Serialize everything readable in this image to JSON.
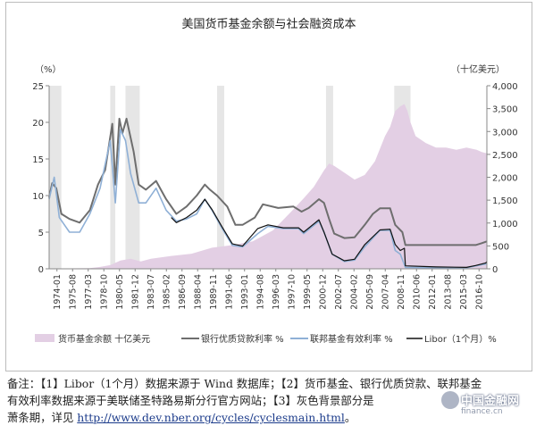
{
  "chart_data": {
    "type": "area+line",
    "title": "美国货币基金余额与社会融资成本",
    "left_axis": {
      "unit": "（%）",
      "min": 0,
      "max": 25,
      "ticks": [
        0,
        5,
        10,
        15,
        20,
        25
      ]
    },
    "right_axis": {
      "unit": "（十亿美元）",
      "min": 0,
      "max": 4000,
      "ticks": [
        0,
        500,
        1000,
        1500,
        2000,
        2500,
        3000,
        3500,
        4000
      ],
      "tick_labels": [
        "0",
        "500",
        "1,000",
        "1,500",
        "2,000",
        "2,500",
        "3,000",
        "3,500",
        "4,000"
      ]
    },
    "x_range": [
      1974.0,
      2017.0
    ],
    "x_tick_labels": [
      "1974-01",
      "1975-08",
      "1977-03",
      "1978-10",
      "1980-05",
      "1981-12",
      "1983-07",
      "1985-02",
      "1986-09",
      "1988-04",
      "1989-11",
      "1991-06",
      "1993-01",
      "1994-08",
      "1996-03",
      "1997-10",
      "1999-05",
      "2000-12",
      "2002-07",
      "2004-02",
      "2005-09",
      "2007-04",
      "2008-11",
      "2010-06",
      "2012-01",
      "2013-08",
      "2015-03",
      "2016-10"
    ],
    "recessions": [
      [
        1974.0,
        1975.2
      ],
      [
        1980.0,
        1980.5
      ],
      [
        1981.5,
        1982.9
      ],
      [
        1990.5,
        1991.2
      ],
      [
        2001.2,
        2001.9
      ],
      [
        2007.9,
        2009.5
      ]
    ],
    "series": [
      {
        "name": "货币基金余额 十亿美元",
        "axis": "right",
        "color": "#e3cfe4",
        "x": [
          1974.0,
          1976.0,
          1978.0,
          1979.0,
          1980.0,
          1981.0,
          1982.0,
          1983.0,
          1984.0,
          1986.0,
          1988.0,
          1990.0,
          1992.0,
          1994.0,
          1996.0,
          1998.0,
          1999.0,
          2000.0,
          2001.0,
          2001.5,
          2002.0,
          2003.0,
          2004.0,
          2005.0,
          2006.0,
          2007.0,
          2007.5,
          2008.0,
          2008.5,
          2008.9,
          2009.2,
          2009.5,
          2010.0,
          2011.0,
          2012.0,
          2013.0,
          2014.0,
          2015.0,
          2016.0,
          2016.5,
          2017.0
        ],
        "values": [
          0,
          10,
          15,
          40,
          80,
          180,
          220,
          160,
          220,
          280,
          330,
          460,
          520,
          600,
          840,
          1300,
          1540,
          1790,
          2150,
          2300,
          2250,
          2100,
          1950,
          2050,
          2350,
          2900,
          3100,
          3450,
          3550,
          3600,
          3450,
          3200,
          2900,
          2750,
          2650,
          2650,
          2600,
          2650,
          2600,
          2550,
          2520
        ]
      },
      {
        "name": "银行优质贷款利率",
        "axis": "left",
        "color": "#6e6e6e",
        "x": [
          1974.0,
          1974.3,
          1974.7,
          1975.2,
          1976.0,
          1977.0,
          1978.0,
          1978.8,
          1979.5,
          1980.2,
          1980.5,
          1980.9,
          1981.2,
          1981.6,
          1982.3,
          1982.8,
          1983.5,
          1984.5,
          1985.5,
          1986.5,
          1987.5,
          1988.5,
          1989.3,
          1989.8,
          1990.5,
          1991.5,
          1992.3,
          1993.0,
          1994.2,
          1995.0,
          1996.5,
          1998.0,
          1998.8,
          1999.5,
          2000.5,
          2001.0,
          2001.5,
          2002.0,
          2003.0,
          2004.0,
          2005.0,
          2005.8,
          2006.5,
          2007.5,
          2008.0,
          2008.7,
          2009.0,
          2010.0,
          2012.0,
          2014.0,
          2015.9,
          2016.5,
          2017.0
        ],
        "values": [
          9.7,
          11.7,
          11.0,
          7.5,
          6.8,
          6.3,
          8.0,
          11.5,
          13.5,
          19.8,
          11.5,
          20.5,
          18.5,
          20.5,
          16.0,
          11.5,
          10.8,
          12.0,
          9.5,
          7.5,
          8.5,
          10.0,
          11.5,
          10.8,
          10.0,
          8.5,
          6.0,
          6.0,
          7.0,
          8.8,
          8.3,
          8.5,
          7.8,
          8.3,
          9.5,
          9.0,
          6.8,
          4.8,
          4.2,
          4.3,
          6.0,
          7.5,
          8.25,
          8.25,
          6.0,
          5.0,
          3.25,
          3.25,
          3.25,
          3.25,
          3.25,
          3.5,
          3.75
        ]
      },
      {
        "name": "联邦基金有效利率",
        "axis": "left",
        "color": "#8fb0d6",
        "x": [
          1974.0,
          1974.5,
          1975.0,
          1976.0,
          1977.0,
          1978.0,
          1979.0,
          1980.0,
          1980.5,
          1981.0,
          1981.5,
          1982.0,
          1982.8,
          1983.5,
          1984.5,
          1985.5,
          1986.5,
          1987.5,
          1988.5,
          1989.3,
          1990.0,
          1991.0,
          1992.0,
          1993.0,
          1994.5,
          1995.5,
          1997.0,
          1998.5,
          1999.0,
          2000.5,
          2001.0,
          2001.8,
          2003.0,
          2004.0,
          2005.0,
          2006.5,
          2007.5,
          2008.0,
          2008.5,
          2009.0,
          2012.0,
          2015.0,
          2015.9,
          2016.9,
          2017.0
        ],
        "values": [
          9.5,
          12.5,
          7.0,
          5.0,
          5.0,
          7.5,
          11.0,
          17.5,
          9.0,
          19.0,
          17.5,
          13.0,
          9.0,
          9.0,
          11.0,
          8.0,
          6.5,
          6.8,
          7.5,
          9.5,
          8.0,
          5.5,
          3.2,
          3.0,
          4.8,
          5.8,
          5.5,
          5.5,
          4.8,
          6.5,
          5.0,
          2.0,
          1.0,
          1.2,
          3.0,
          5.25,
          5.25,
          2.5,
          2.0,
          0.2,
          0.15,
          0.15,
          0.4,
          0.66,
          0.7
        ]
      },
      {
        "name": "Libor（1个月）",
        "axis": "left",
        "color": "#111111",
        "x": [
          1986.0,
          1986.5,
          1987.5,
          1988.5,
          1989.3,
          1990.0,
          1991.0,
          1992.0,
          1993.0,
          1994.5,
          1995.5,
          1997.0,
          1998.5,
          1999.0,
          2000.5,
          2001.0,
          2001.8,
          2003.0,
          2004.0,
          2005.0,
          2006.5,
          2007.5,
          2008.0,
          2008.5,
          2008.9,
          2009.0,
          2012.0,
          2015.0,
          2015.9,
          2016.9,
          2017.0
        ],
        "values": [
          7.0,
          6.3,
          7.0,
          8.0,
          9.5,
          8.1,
          5.7,
          3.4,
          3.1,
          5.5,
          6.0,
          5.6,
          5.6,
          5.0,
          6.7,
          5.0,
          2.0,
          1.1,
          1.3,
          3.3,
          5.3,
          5.4,
          3.3,
          2.5,
          2.8,
          0.4,
          0.25,
          0.2,
          0.45,
          0.8,
          1.0
        ]
      }
    ],
    "legend": [
      "货币基金余额 十亿美元",
      "银行优质贷款利率 %",
      "联邦基金有效利率 %",
      "Libor（1个月）%"
    ],
    "legend_position": "bottom"
  },
  "note": {
    "line1": "备注：【1】Libor（1个月）数据来源于 Wind 数据库；【2】货币基金、银行优质贷款、联邦基金",
    "line2": "有效利率数据来源于美联储圣特路易斯分行官方网站；【3】灰色背景部分是",
    "line3_prefix": "萧条期，详见 ",
    "link": "http://www.dev.nber.org/cycles/cyclesmain.html",
    "line3_suffix": "。"
  },
  "watermark": {
    "cn": "中国金融网",
    "en": "finance.cn"
  }
}
